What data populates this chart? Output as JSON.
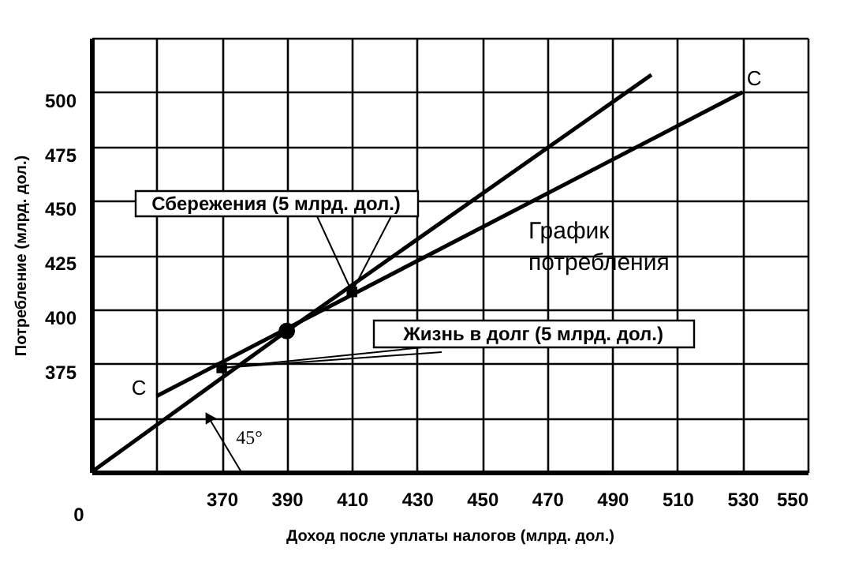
{
  "chart_data": {
    "type": "line",
    "xlabel": "Доход после уплаты налогов (млрд. дол.)",
    "ylabel": "Потребление (млрд. дол.)",
    "xlim": [
      330,
      550
    ],
    "ylim": [
      325,
      525
    ],
    "xticks": [
      {
        "value": 350,
        "label": null
      },
      370,
      390,
      410,
      430,
      450,
      470,
      490,
      510,
      530,
      550
    ],
    "yticks": [
      {
        "value": 350,
        "label": null
      },
      375,
      400,
      425,
      450,
      475,
      500,
      {
        "value": 525,
        "label": null
      }
    ],
    "grid": true,
    "series": [
      {
        "color": "#000000",
        "x": [
          330,
          390,
          502
        ],
        "values": [
          325,
          390,
          508
        ]
      },
      {
        "color": "#000000",
        "x": [
          350,
          530
        ],
        "values": [
          360,
          500
        ]
      },
      {
        "type": "scatter",
        "marker": "circle",
        "color": "#000000",
        "x": [
          390
        ],
        "values": [
          390
        ]
      },
      {
        "type": "scatter",
        "marker": "square",
        "color": "#000000",
        "x": [
          370,
          410
        ],
        "values": [
          373,
          408
        ]
      }
    ],
    "annotations": [
      {
        "text": "Сбережения (5 млрд. дол.)",
        "x": 410,
        "y": 408
      },
      {
        "text": "Жизнь в долг (5 млрд. дол.)",
        "x": 370,
        "y": 373
      },
      "45°",
      "График потребления",
      "C",
      "C",
      "0"
    ]
  }
}
